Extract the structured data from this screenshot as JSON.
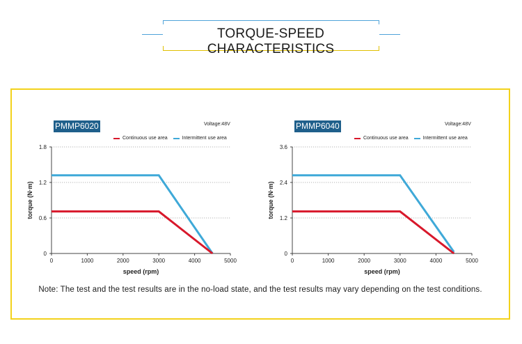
{
  "page": {
    "title": "TORQUE-SPEED CHARACTERISTICS",
    "note": "Note: The test and the test results are in the no-load state, and the test results may vary depending on the test conditions."
  },
  "colors": {
    "continuous": "#d8182b",
    "intermittent": "#3fa9d8",
    "panel_border": "#f3d21b",
    "title_accent": "#4fa3d9",
    "badge_bg": "#1f5f8b"
  },
  "chart_data": [
    {
      "type": "line",
      "title": "PMMP6020",
      "voltage": "Voltage:48V",
      "xlabel": "speed (rpm)",
      "ylabel": "torque (N·m)",
      "xlim": [
        0,
        5000
      ],
      "ylim": [
        0,
        1.8
      ],
      "x_ticks": [
        0,
        1000,
        2000,
        3000,
        4000,
        5000
      ],
      "y_ticks": [
        "0",
        "0.6",
        "1.2",
        "1.8"
      ],
      "y_tick_values": [
        0,
        0.6,
        1.2,
        1.8
      ],
      "grid": "horizontal dotted",
      "legend": "top-right",
      "series": [
        {
          "name": "Continuous use area",
          "color": "#d8182b",
          "x": [
            0,
            3000,
            4500
          ],
          "y": [
            0.71,
            0.71,
            0.0
          ]
        },
        {
          "name": "Intermittent use area",
          "color": "#3fa9d8",
          "x": [
            0,
            3000,
            4500
          ],
          "y": [
            1.32,
            1.32,
            0.0
          ]
        }
      ]
    },
    {
      "type": "line",
      "title": "PMMP6040",
      "voltage": "Voltage:48V",
      "xlabel": "speed (rpm)",
      "ylabel": "torque (N·m)",
      "xlim": [
        0,
        5000
      ],
      "ylim": [
        0,
        3.6
      ],
      "x_ticks": [
        0,
        1000,
        2000,
        3000,
        4000,
        5000
      ],
      "y_ticks": [
        "0",
        "1.2",
        "2.4",
        "3.6"
      ],
      "y_tick_values": [
        0,
        1.2,
        2.4,
        3.6
      ],
      "grid": "horizontal dotted",
      "legend": "top-right",
      "series": [
        {
          "name": "Continuous use area",
          "color": "#d8182b",
          "x": [
            0,
            3000,
            4500
          ],
          "y": [
            1.42,
            1.42,
            0.0
          ]
        },
        {
          "name": "Intermittent use area",
          "color": "#3fa9d8",
          "x": [
            0,
            3000,
            4500
          ],
          "y": [
            2.64,
            2.64,
            0.05
          ]
        }
      ]
    }
  ]
}
